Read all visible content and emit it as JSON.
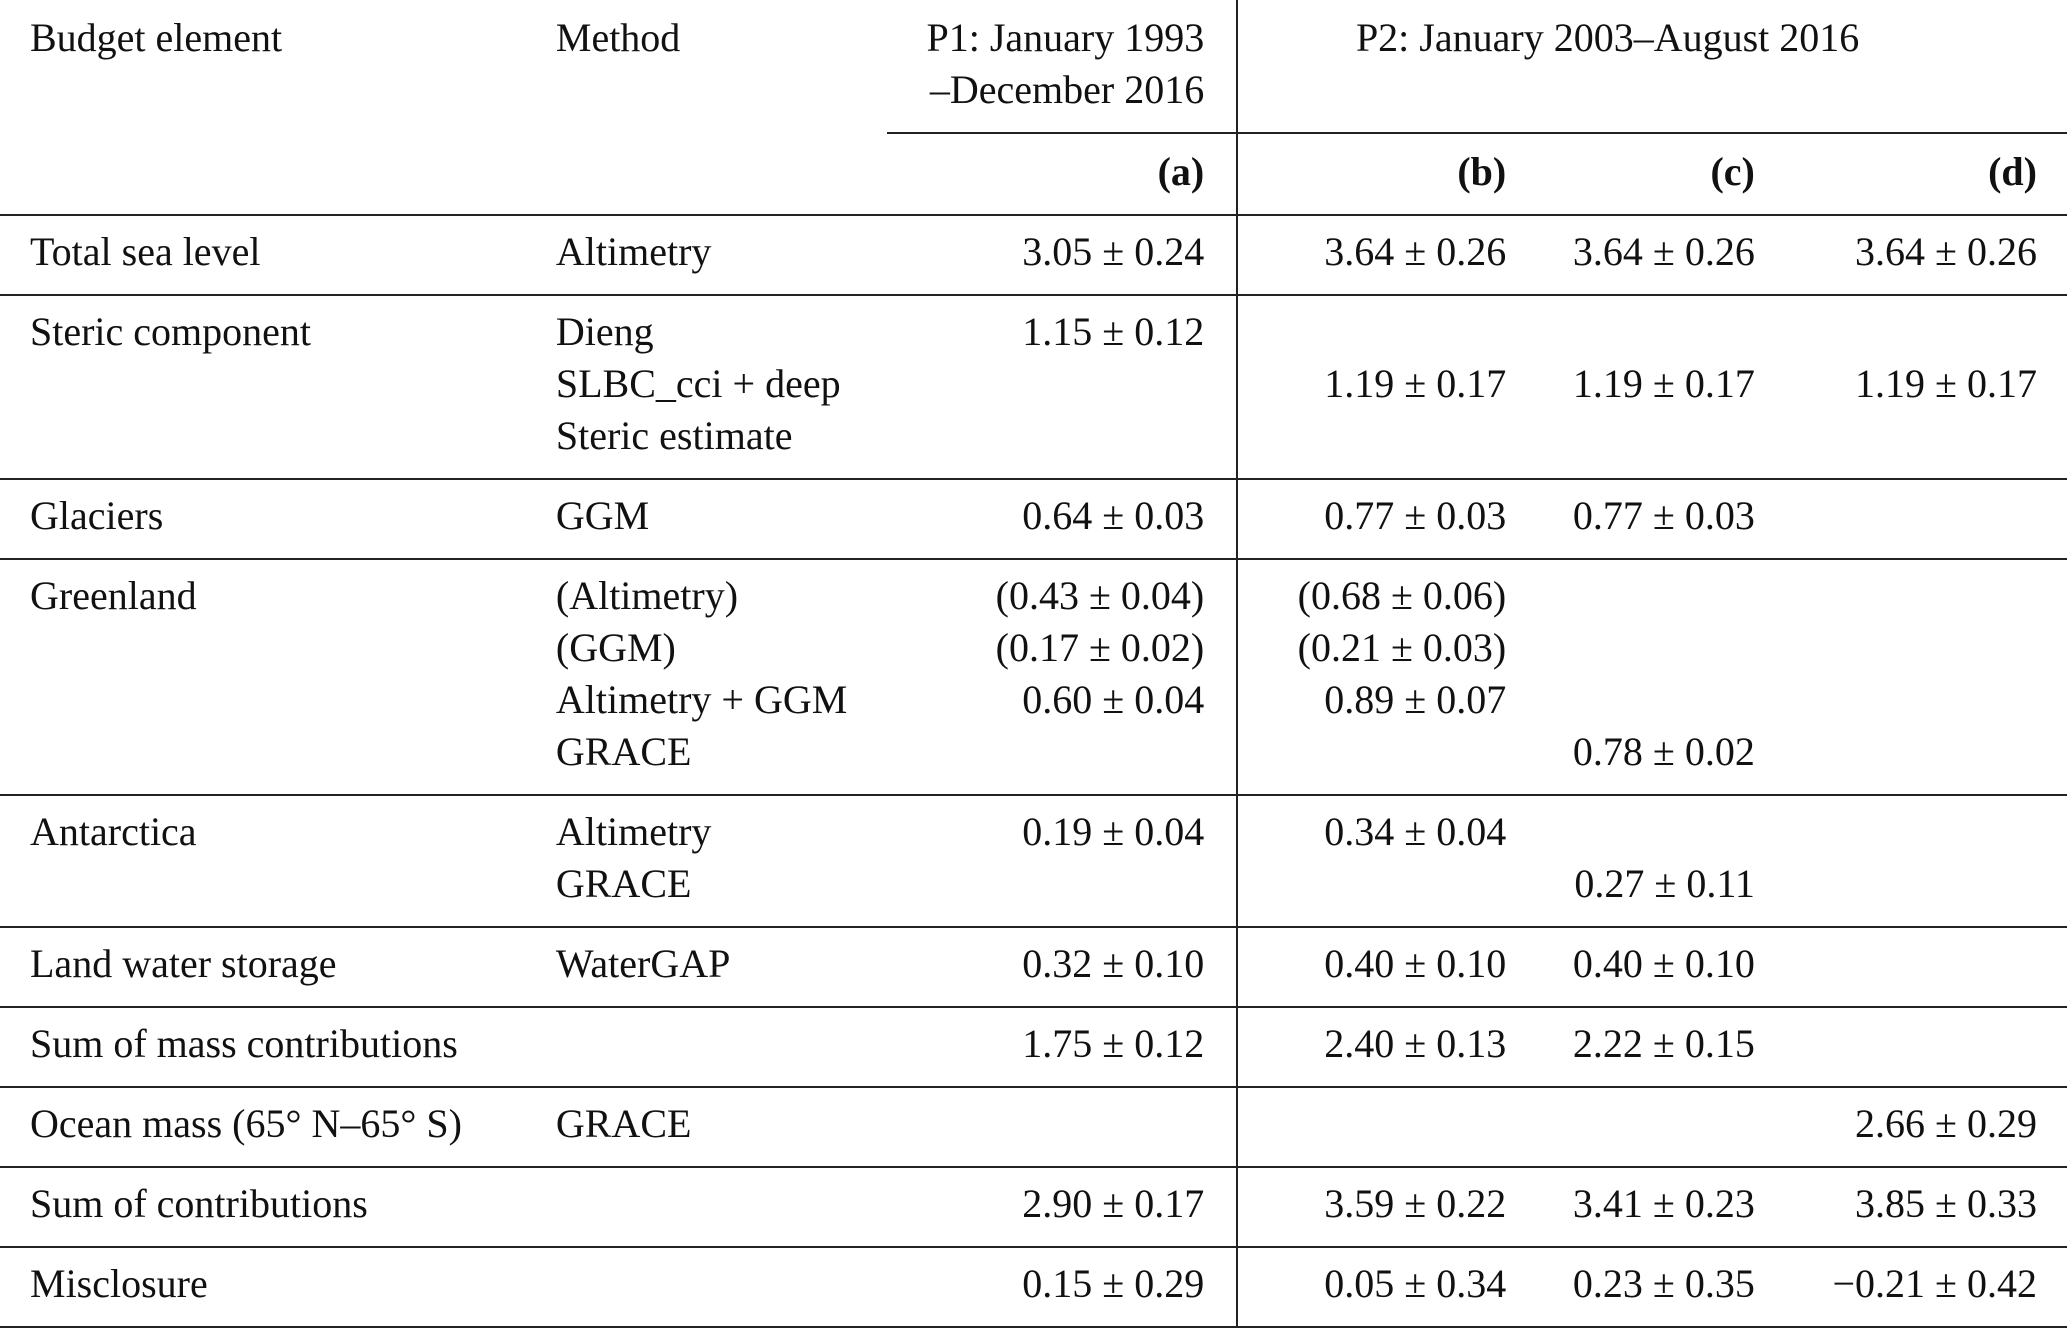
{
  "header": {
    "col_element": "Budget element",
    "col_method": "Method",
    "p1_line1": "P1: January 1993",
    "p1_line2": "–December 2016",
    "p2_label": "P2: January 2003–August 2016",
    "sub_a": "(a)",
    "sub_b": "(b)",
    "sub_c": "(c)",
    "sub_d": "(d)"
  },
  "rows": [
    {
      "element": "Total sea level",
      "lines": [
        {
          "method": "Altimetry",
          "a": "3.05 ± 0.24",
          "b": "3.64 ± 0.26",
          "c": "3.64 ± 0.26",
          "d": "3.64 ± 0.26"
        }
      ]
    },
    {
      "element": "Steric component",
      "lines": [
        {
          "method": "Dieng",
          "a": "1.15 ± 0.12",
          "b": "",
          "c": "",
          "d": ""
        },
        {
          "method": "SLBC_cci + deep",
          "a": "",
          "b": "1.19 ± 0.17",
          "c": "1.19 ± 0.17",
          "d": "1.19 ± 0.17"
        },
        {
          "method": "Steric estimate",
          "a": "",
          "b": "",
          "c": "",
          "d": ""
        }
      ]
    },
    {
      "element": "Glaciers",
      "lines": [
        {
          "method": "GGM",
          "a": "0.64 ± 0.03",
          "b": "0.77 ± 0.03",
          "c": "0.77 ± 0.03",
          "d": ""
        }
      ]
    },
    {
      "element": "Greenland",
      "lines": [
        {
          "method": "(Altimetry)",
          "a": "(0.43 ± 0.04)",
          "b": "(0.68 ± 0.06)",
          "c": "",
          "d": ""
        },
        {
          "method": "(GGM)",
          "a": "(0.17 ± 0.02)",
          "b": "(0.21 ± 0.03)",
          "c": "",
          "d": ""
        },
        {
          "method": "Altimetry + GGM",
          "a": "0.60 ± 0.04",
          "b": "0.89 ± 0.07",
          "c": "",
          "d": ""
        },
        {
          "method": "GRACE",
          "a": "",
          "b": "",
          "c": "0.78 ± 0.02",
          "d": ""
        }
      ]
    },
    {
      "element": "Antarctica",
      "lines": [
        {
          "method": "Altimetry",
          "a": "0.19 ± 0.04",
          "b": "0.34 ± 0.04",
          "c": "",
          "d": ""
        },
        {
          "method": "GRACE",
          "a": "",
          "b": "",
          "c": "0.27 ± 0.11",
          "d": ""
        }
      ]
    },
    {
      "element": "Land water storage",
      "lines": [
        {
          "method": "WaterGAP",
          "a": "0.32 ± 0.10",
          "b": "0.40 ± 0.10",
          "c": "0.40 ± 0.10",
          "d": ""
        }
      ]
    },
    {
      "element": "Sum of mass contributions",
      "lines": [
        {
          "method": "",
          "a": "1.75 ± 0.12",
          "b": "2.40 ± 0.13",
          "c": "2.22 ± 0.15",
          "d": ""
        }
      ]
    },
    {
      "element": "Ocean mass (65° N–65° S)",
      "lines": [
        {
          "method": "GRACE",
          "a": "",
          "b": "",
          "c": "",
          "d": "2.66 ± 0.29"
        }
      ]
    },
    {
      "element": "Sum of contributions",
      "lines": [
        {
          "method": "",
          "a": "2.90 ± 0.17",
          "b": "3.59 ± 0.22",
          "c": "3.41 ± 0.23",
          "d": "3.85 ± 0.33"
        }
      ]
    },
    {
      "element": "Misclosure",
      "lines": [
        {
          "method": "",
          "a": "0.15 ± 0.29",
          "b": "0.05 ± 0.34",
          "c": "0.23 ± 0.35",
          "d": "−0.21 ± 0.42"
        }
      ]
    }
  ]
}
